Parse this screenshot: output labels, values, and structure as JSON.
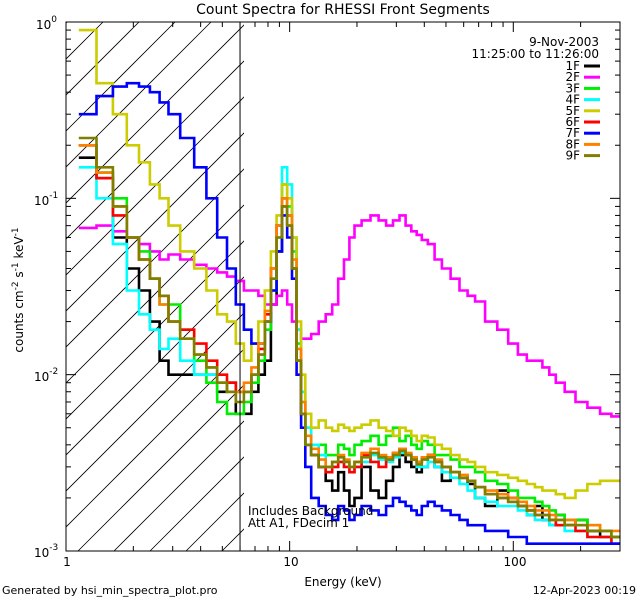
{
  "chart_data": {
    "type": "line",
    "title": "Count Spectra for RHESSI Front Segments",
    "xlabel": "Energy (keV)",
    "ylabel": {
      "base": "counts cm",
      "exp1": "-2",
      "mid": " s",
      "exp2": "-1",
      "mid2": " keV",
      "exp3": "-1"
    },
    "xscale": "log",
    "yscale": "log",
    "xlim": [
      1,
      300
    ],
    "ylim": [
      0.001,
      1
    ],
    "x_ticks": [
      {
        "value": 1,
        "label": "1"
      },
      {
        "value": 10,
        "label": "10"
      },
      {
        "value": 100,
        "label": "100"
      }
    ],
    "y_ticks": [
      {
        "value": 1,
        "mant": "10",
        "exp": "0"
      },
      {
        "value": 0.1,
        "mant": "10",
        "exp": "-1"
      },
      {
        "value": 0.01,
        "mant": "10",
        "exp": "-2"
      },
      {
        "value": 0.001,
        "mant": "10",
        "exp": "-3"
      }
    ],
    "hatch_region_kev": [
      1,
      6
    ],
    "annotations": {
      "date": "9-Nov-2003",
      "time_range": "11:25:00 to 11:26:00",
      "background_note": "Includes Background",
      "atten_note": "Att A1, FDecim 1"
    },
    "footer": {
      "left": "Generated by hsi_min_spectra_plot.pro",
      "right": "12-Apr-2023 00:19"
    },
    "bins_kev": [
      1.25,
      1.5,
      1.75,
      2,
      2.25,
      2.5,
      2.75,
      3,
      3.5,
      4,
      4.5,
      5,
      5.5,
      6,
      6.5,
      7,
      7.5,
      8,
      8.5,
      9,
      9.5,
      10,
      10.5,
      11,
      11.5,
      12,
      13,
      14,
      15,
      16,
      17,
      18,
      19,
      20,
      22,
      24,
      26,
      28,
      30,
      32,
      34,
      36,
      38,
      40,
      43,
      46,
      50,
      55,
      60,
      65,
      70,
      80,
      90,
      100,
      110,
      120,
      130,
      140,
      150,
      160,
      180,
      200,
      230,
      260,
      290
    ],
    "series": [
      {
        "name": "1F",
        "color": "#000000",
        "values": [
          0.17,
          0.13,
          0.06,
          0.04,
          0.03,
          0.02,
          0.012,
          0.01,
          0.01,
          0.01,
          0.01,
          0.008,
          0.009,
          0.006,
          0.006,
          0.008,
          0.01,
          0.012,
          0.025,
          0.05,
          0.1,
          0.08,
          0.04,
          0.012,
          0.006,
          0.004,
          0.0035,
          0.003,
          0.0025,
          0.0022,
          0.0028,
          0.0022,
          0.0018,
          0.002,
          0.003,
          0.0022,
          0.002,
          0.0025,
          0.003,
          0.0035,
          0.0032,
          0.003,
          0.0028,
          0.003,
          0.0035,
          0.003,
          0.0025,
          0.0028,
          0.0026,
          0.0024,
          0.002,
          0.0018,
          0.0022,
          0.002,
          0.0018,
          0.0016,
          0.0018,
          0.0015,
          0.0014,
          0.0016,
          0.0014,
          0.0015,
          0.0013,
          0.0012,
          0.0012
        ]
      },
      {
        "name": "2F",
        "color": "#ff00ff",
        "values": [
          0.068,
          0.07,
          0.065,
          0.06,
          0.055,
          0.05,
          0.045,
          0.048,
          0.045,
          0.042,
          0.04,
          0.038,
          0.036,
          0.034,
          0.03,
          0.03,
          0.028,
          0.025,
          0.025,
          0.028,
          0.03,
          0.025,
          0.02,
          0.018,
          0.016,
          0.016,
          0.017,
          0.02,
          0.022,
          0.025,
          0.035,
          0.045,
          0.06,
          0.07,
          0.075,
          0.08,
          0.075,
          0.07,
          0.075,
          0.08,
          0.07,
          0.065,
          0.062,
          0.058,
          0.055,
          0.045,
          0.04,
          0.035,
          0.03,
          0.028,
          0.026,
          0.02,
          0.018,
          0.015,
          0.013,
          0.012,
          0.012,
          0.011,
          0.01,
          0.009,
          0.008,
          0.007,
          0.0065,
          0.006,
          0.0058
        ]
      },
      {
        "name": "3F",
        "color": "#00ee00",
        "values": [
          0.2,
          0.14,
          0.1,
          0.06,
          0.05,
          0.035,
          0.025,
          0.025,
          0.018,
          0.012,
          0.009,
          0.007,
          0.006,
          0.006,
          0.007,
          0.009,
          0.012,
          0.018,
          0.03,
          0.06,
          0.12,
          0.09,
          0.05,
          0.015,
          0.007,
          0.005,
          0.004,
          0.004,
          0.0035,
          0.0035,
          0.004,
          0.0038,
          0.0035,
          0.004,
          0.0042,
          0.0045,
          0.004,
          0.0045,
          0.005,
          0.0042,
          0.0045,
          0.004,
          0.0038,
          0.0042,
          0.004,
          0.0035,
          0.0035,
          0.0033,
          0.003,
          0.003,
          0.0028,
          0.0025,
          0.0024,
          0.0022,
          0.002,
          0.002,
          0.0019,
          0.0018,
          0.0017,
          0.0016,
          0.0015,
          0.0015,
          0.0014,
          0.0013,
          0.0012
        ]
      },
      {
        "name": "4F",
        "color": "#00ffff",
        "values": [
          0.15,
          0.1,
          0.055,
          0.03,
          0.022,
          0.018,
          0.014,
          0.016,
          0.012,
          0.01,
          0.01,
          0.009,
          0.008,
          0.008,
          0.008,
          0.01,
          0.013,
          0.02,
          0.035,
          0.07,
          0.15,
          0.12,
          0.06,
          0.018,
          0.008,
          0.005,
          0.004,
          0.0035,
          0.003,
          0.003,
          0.0032,
          0.003,
          0.0028,
          0.003,
          0.0032,
          0.0035,
          0.0033,
          0.0032,
          0.0034,
          0.0036,
          0.0035,
          0.0033,
          0.003,
          0.003,
          0.0032,
          0.003,
          0.0028,
          0.0026,
          0.0024,
          0.0022,
          0.002,
          0.0019,
          0.0018,
          0.0018,
          0.0017,
          0.0016,
          0.0015,
          0.0015,
          0.0014,
          0.0014,
          0.0013,
          0.0013,
          0.0012,
          0.0012,
          0.0011
        ]
      },
      {
        "name": "5F",
        "color": "#cccc00",
        "values": [
          0.9,
          0.45,
          0.3,
          0.2,
          0.16,
          0.12,
          0.1,
          0.07,
          0.05,
          0.04,
          0.03,
          0.022,
          0.02,
          0.015,
          0.012,
          0.015,
          0.02,
          0.03,
          0.05,
          0.08,
          0.12,
          0.1,
          0.06,
          0.02,
          0.01,
          0.006,
          0.005,
          0.0055,
          0.005,
          0.0048,
          0.0052,
          0.005,
          0.0048,
          0.005,
          0.0052,
          0.0055,
          0.005,
          0.0048,
          0.0045,
          0.005,
          0.0048,
          0.0045,
          0.0042,
          0.0045,
          0.0044,
          0.004,
          0.0038,
          0.0035,
          0.0033,
          0.0032,
          0.003,
          0.0028,
          0.0027,
          0.0026,
          0.0025,
          0.0024,
          0.0023,
          0.0022,
          0.0022,
          0.0021,
          0.002,
          0.0022,
          0.0024,
          0.0025,
          0.0025
        ]
      },
      {
        "name": "6F",
        "color": "#ff0000",
        "values": [
          0.2,
          0.13,
          0.08,
          0.06,
          0.045,
          0.035,
          0.028,
          0.02,
          0.018,
          0.015,
          0.012,
          0.01,
          0.009,
          0.008,
          0.008,
          0.01,
          0.014,
          0.022,
          0.04,
          0.07,
          0.09,
          0.07,
          0.04,
          0.012,
          0.006,
          0.004,
          0.0035,
          0.003,
          0.0028,
          0.003,
          0.0032,
          0.003,
          0.0028,
          0.003,
          0.0035,
          0.0032,
          0.003,
          0.0034,
          0.0036,
          0.0038,
          0.0035,
          0.0033,
          0.0032,
          0.0034,
          0.0035,
          0.0032,
          0.003,
          0.0028,
          0.0026,
          0.0025,
          0.0023,
          0.0021,
          0.002,
          0.0019,
          0.0018,
          0.0017,
          0.0016,
          0.0016,
          0.0015,
          0.0014,
          0.0014,
          0.0013,
          0.0012,
          0.0012,
          0.0011
        ]
      },
      {
        "name": "7F",
        "color": "#0000ff",
        "values": [
          0.3,
          0.38,
          0.43,
          0.45,
          0.43,
          0.4,
          0.35,
          0.3,
          0.22,
          0.15,
          0.1,
          0.06,
          0.04,
          0.025,
          0.018,
          0.015,
          0.015,
          0.02,
          0.03,
          0.05,
          0.08,
          0.06,
          0.035,
          0.01,
          0.005,
          0.003,
          0.002,
          0.0018,
          0.0016,
          0.0015,
          0.0018,
          0.0017,
          0.0015,
          0.0016,
          0.0018,
          0.0017,
          0.0016,
          0.0018,
          0.002,
          0.0019,
          0.0018,
          0.0017,
          0.0016,
          0.0018,
          0.0019,
          0.0018,
          0.0017,
          0.0016,
          0.0015,
          0.0014,
          0.0014,
          0.0013,
          0.0013,
          0.0012,
          0.0012,
          0.0011,
          0.0011,
          0.0011,
          0.0011,
          0.0011,
          0.0011,
          0.0011,
          0.0011,
          0.0011,
          0.0011
        ]
      },
      {
        "name": "8F",
        "color": "#ff8000",
        "values": [
          0.2,
          0.14,
          0.09,
          0.06,
          0.045,
          0.035,
          0.025,
          0.02,
          0.016,
          0.013,
          0.011,
          0.009,
          0.008,
          0.008,
          0.009,
          0.011,
          0.015,
          0.023,
          0.04,
          0.07,
          0.1,
          0.08,
          0.045,
          0.014,
          0.007,
          0.0045,
          0.0038,
          0.0033,
          0.003,
          0.0032,
          0.0035,
          0.0033,
          0.003,
          0.0032,
          0.0036,
          0.0038,
          0.0035,
          0.0034,
          0.0036,
          0.0038,
          0.0036,
          0.0034,
          0.0032,
          0.0034,
          0.0035,
          0.0033,
          0.003,
          0.0028,
          0.0027,
          0.0025,
          0.0023,
          0.0022,
          0.0021,
          0.002,
          0.0019,
          0.0018,
          0.0017,
          0.0017,
          0.0016,
          0.0015,
          0.0015,
          0.0014,
          0.0014,
          0.0013,
          0.0013
        ]
      },
      {
        "name": "9F",
        "color": "#808000",
        "values": [
          0.22,
          0.15,
          0.09,
          0.06,
          0.045,
          0.035,
          0.028,
          0.02,
          0.016,
          0.013,
          0.011,
          0.009,
          0.008,
          0.007,
          0.008,
          0.01,
          0.013,
          0.02,
          0.035,
          0.06,
          0.09,
          0.07,
          0.04,
          0.012,
          0.006,
          0.004,
          0.0035,
          0.003,
          0.003,
          0.0032,
          0.0034,
          0.0032,
          0.003,
          0.0032,
          0.0034,
          0.0036,
          0.0034,
          0.0033,
          0.0035,
          0.0037,
          0.0035,
          0.0033,
          0.0031,
          0.0033,
          0.0034,
          0.0032,
          0.003,
          0.0028,
          0.0026,
          0.0025,
          0.0023,
          0.0021,
          0.002,
          0.0019,
          0.0018,
          0.0017,
          0.0016,
          0.0016,
          0.0015,
          0.0015,
          0.0014,
          0.0014,
          0.0013,
          0.0013,
          0.0012
        ]
      }
    ]
  }
}
